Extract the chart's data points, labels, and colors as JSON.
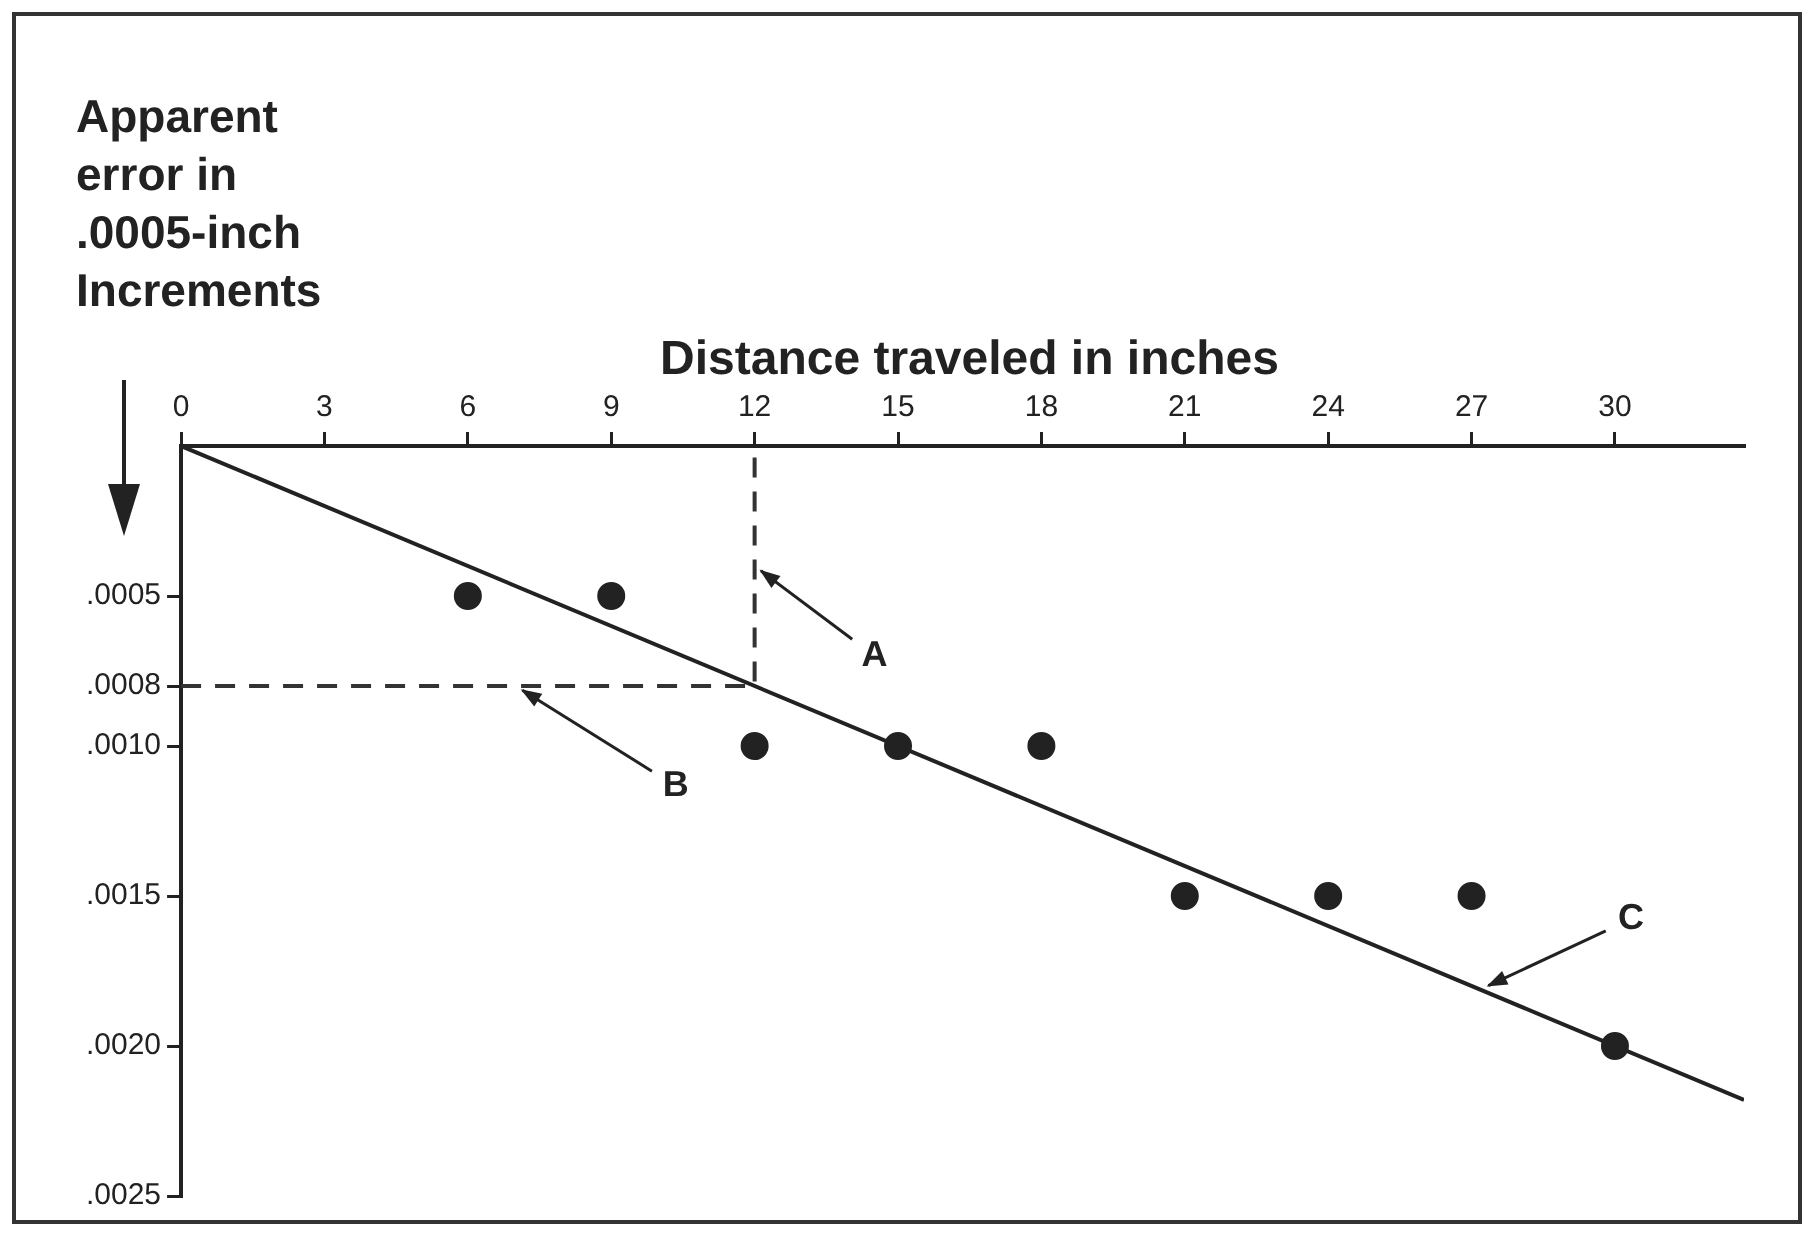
{
  "chart_data": {
    "type": "scatter",
    "xlabel": "Distance traveled in inches",
    "ylabel": "Apparent error in .0005-inch Increments",
    "xlim": [
      0,
      32.7
    ],
    "xticks": [
      0,
      3,
      6,
      9,
      12,
      15,
      18,
      21,
      24,
      27,
      30
    ],
    "ylim": [
      0.0025,
      0
    ],
    "yticks": [
      {
        "value": 0.0005,
        "label": ".0005"
      },
      {
        "value": 0.0008,
        "label": ".0008"
      },
      {
        "value": 0.001,
        "label": ".0010"
      },
      {
        "value": 0.0015,
        "label": ".0015"
      },
      {
        "value": 0.002,
        "label": ".0020"
      },
      {
        "value": 0.0025,
        "label": ".0025"
      }
    ],
    "series": [
      {
        "color": "#222222",
        "marker": "circle",
        "x": [
          6,
          9,
          12,
          15,
          18,
          21,
          24,
          27,
          30
        ],
        "values": [
          0.0005,
          0.0005,
          0.001,
          0.001,
          0.001,
          0.0015,
          0.0015,
          0.0015,
          0.002
        ]
      },
      {
        "type": "line",
        "color": "#222222",
        "marker": "none",
        "line_style": "solid",
        "x": [
          0,
          32.7
        ],
        "values": [
          0,
          0.00218
        ]
      },
      {
        "type": "line",
        "color": "#333333",
        "marker": "none",
        "line_style": "dashed",
        "x": [
          0,
          12,
          12
        ],
        "values": [
          0.0008,
          0.0008,
          0
        ]
      }
    ],
    "annotations": [
      {
        "text": "A",
        "x": 12,
        "y": 0.0004
      },
      {
        "text": "B",
        "x": 7,
        "y": 0.0008
      },
      {
        "text": "C",
        "x": 27.2,
        "y": 0.00181
      }
    ],
    "grid": false,
    "legend": false
  }
}
